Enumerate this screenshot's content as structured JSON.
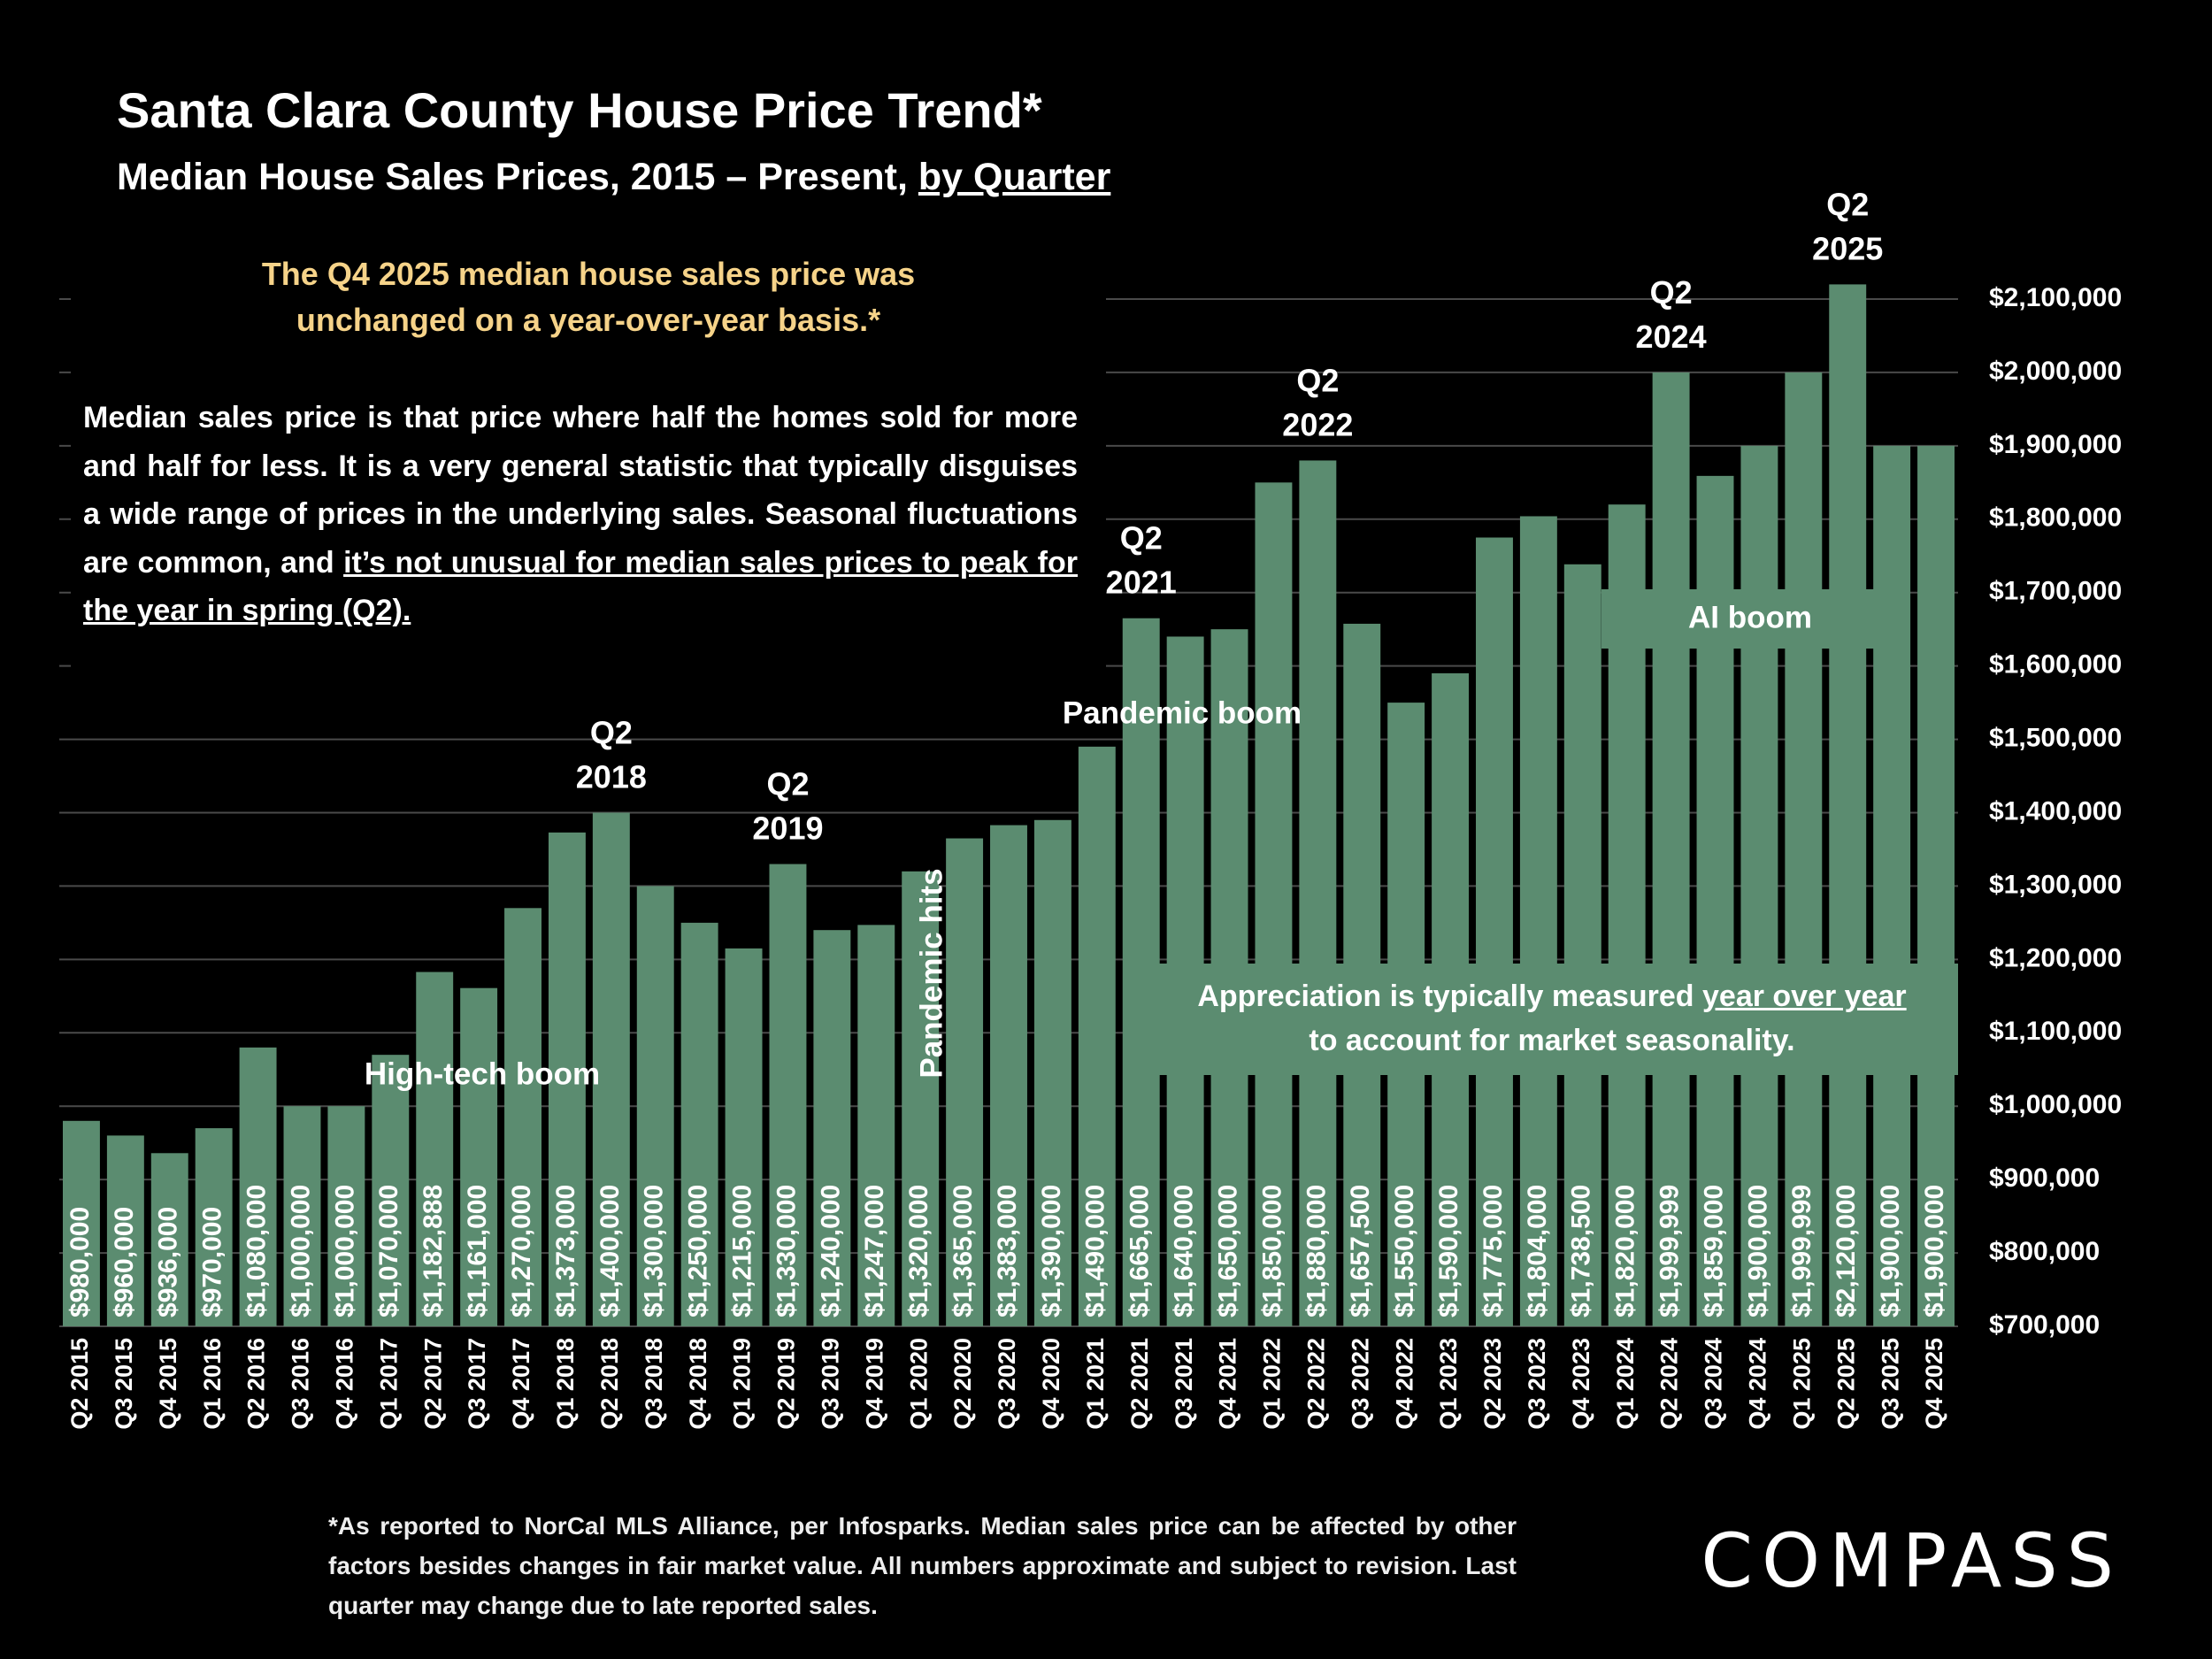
{
  "chart_data": {
    "type": "bar",
    "title": "Santa Clara County House Price Trend*",
    "subtitle": "Median House Sales Prices, 2015 – Present,",
    "subtitle_underlined": "by Quarter",
    "note": [
      "The Q4 2025 median house sales price was",
      "unchanged on a year-over-year basis.*"
    ],
    "explanation": {
      "text": "Median sales price is that price where half the homes sold for more and half for less. It is a very general statistic that typically disguises a wide range of prices in the underlying sales. Seasonal fluctuations are common, and",
      "underlined": "it’s not unusual for median sales prices to peak for the year in spring (Q2)."
    },
    "categories": [
      "Q2 2015",
      "Q3 2015",
      "Q4 2015",
      "Q1 2016",
      "Q2 2016",
      "Q3 2016",
      "Q4 2016",
      "Q1 2017",
      "Q2 2017",
      "Q3 2017",
      "Q4 2017",
      "Q1 2018",
      "Q2 2018",
      "Q3 2018",
      "Q4 2018",
      "Q1 2019",
      "Q2 2019",
      "Q3 2019",
      "Q4 2019",
      "Q1 2020",
      "Q2 2020",
      "Q3 2020",
      "Q4 2020",
      "Q1 2021",
      "Q2 2021",
      "Q3 2021",
      "Q4 2021",
      "Q1 2022",
      "Q2 2022",
      "Q3 2022",
      "Q4 2022",
      "Q1 2023",
      "Q2 2023",
      "Q3 2023",
      "Q4 2023",
      "Q1 2024",
      "Q2 2024",
      "Q3 2024",
      "Q4 2024",
      "Q1 2025",
      "Q2 2025",
      "Q3 2025",
      "Q4 2025"
    ],
    "values": [
      980000,
      960000,
      936000,
      970000,
      1080000,
      1000000,
      1000000,
      1070000,
      1182888,
      1161000,
      1270000,
      1373000,
      1400000,
      1300000,
      1250000,
      1215000,
      1330000,
      1240000,
      1247000,
      1320000,
      1365000,
      1383000,
      1390000,
      1490000,
      1665000,
      1640000,
      1650000,
      1850000,
      1880000,
      1657500,
      1550000,
      1590000,
      1775000,
      1804000,
      1738500,
      1820000,
      1999999,
      1859000,
      1900000,
      1999999,
      2120000,
      1900000,
      1900000
    ],
    "value_labels": [
      "$980,000",
      "$960,000",
      "$936,000",
      "$970,000",
      "$1,080,000",
      "$1,000,000",
      "$1,000,000",
      "$1,070,000",
      "$1,182,888",
      "$1,161,000",
      "$1,270,000",
      "$1,373,000",
      "$1,400,000",
      "$1,300,000",
      "$1,250,000",
      "$1,215,000",
      "$1,330,000",
      "$1,240,000",
      "$1,247,000",
      "$1,320,000",
      "$1,365,000",
      "$1,383,000",
      "$1,390,000",
      "$1,490,000",
      "$1,665,000",
      "$1,640,000",
      "$1,650,000",
      "$1,850,000",
      "$1,880,000",
      "$1,657,500",
      "$1,550,000",
      "$1,590,000",
      "$1,775,000",
      "$1,804,000",
      "$1,738,500",
      "$1,820,000",
      "$1,999,999",
      "$1,859,000",
      "$1,900,000",
      "$1,999,999",
      "$2,120,000",
      "$1,900,000",
      "$1,900,000"
    ],
    "color": "#5b8c70",
    "ylim": [
      700000,
      2100000
    ],
    "yticks": [
      {
        "value": 700000,
        "label": "$700,000"
      },
      {
        "value": 800000,
        "label": "$800,000"
      },
      {
        "value": 900000,
        "label": "$900,000"
      },
      {
        "value": 1000000,
        "label": "$1,000,000"
      },
      {
        "value": 1100000,
        "label": "$1,100,000"
      },
      {
        "value": 1200000,
        "label": "$1,200,000"
      },
      {
        "value": 1300000,
        "label": "$1,300,000"
      },
      {
        "value": 1400000,
        "label": "$1,400,000"
      },
      {
        "value": 1500000,
        "label": "$1,500,000"
      },
      {
        "value": 1600000,
        "label": "$1,600,000"
      },
      {
        "value": 1700000,
        "label": "$1,700,000"
      },
      {
        "value": 1800000,
        "label": "$1,800,000"
      },
      {
        "value": 1900000,
        "label": "$1,900,000"
      },
      {
        "value": 2000000,
        "label": "$2,000,000"
      },
      {
        "value": 2100000,
        "label": "$2,100,000"
      }
    ],
    "grid": true,
    "peak_labels": [
      [
        "Q2",
        "2018"
      ],
      [
        "Q2",
        "2019"
      ],
      [
        "Q2",
        "2021"
      ],
      [
        "Q2",
        "2022"
      ],
      [
        "Q2",
        "2024"
      ],
      [
        "Q2",
        "2025"
      ]
    ],
    "event_labels": [
      "High-tech boom",
      "Pandemic hits",
      "Pandemic boom",
      "AI boom"
    ],
    "callout": {
      "text": "Appreciation is typically measured",
      "underlined": "year over year",
      "text_end": "to account for market seasonality."
    },
    "footnote": "*As reported to NorCal MLS Alliance, per Infosparks. Median sales price can be affected by other factors besides changes in fair market value. All numbers approximate and subject to revision. Last quarter may change due to late reported sales.",
    "logo": "COMPASS"
  }
}
